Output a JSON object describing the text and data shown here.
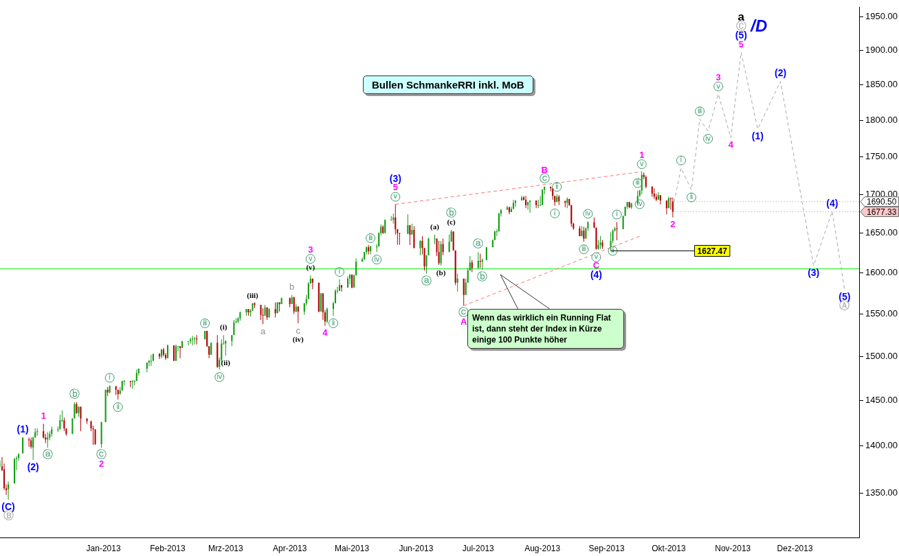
{
  "chart_data": {
    "type": "candlestick",
    "title": "Bullen SchmankeRRI inkl. MoB",
    "log": "y",
    "legend": false,
    "xlim": [
      "2012-11-12",
      "2014-01-01"
    ],
    "xticks": [
      {
        "value": "2013-01-01",
        "label": "Jan-2013"
      },
      {
        "value": "2013-02-01",
        "label": "Feb-2013"
      },
      {
        "value": "2013-03-01",
        "label": "Mrz-2013"
      },
      {
        "value": "2013-04-01",
        "label": "Apr-2013"
      },
      {
        "value": "2013-05-01",
        "label": "Mai-2013"
      },
      {
        "value": "2013-06-01",
        "label": "Jun-2013"
      },
      {
        "value": "2013-07-01",
        "label": "Jul-2013"
      },
      {
        "value": "2013-08-01",
        "label": "Aug-2013"
      },
      {
        "value": "2013-09-01",
        "label": "Sep-2013"
      },
      {
        "value": "2013-10-01",
        "label": "Okt-2013"
      },
      {
        "value": "2013-11-01",
        "label": "Nov-2013"
      },
      {
        "value": "2013-12-01",
        "label": "Dez-2013"
      }
    ],
    "ylim": [
      1304,
      1964
    ],
    "yticks": [
      {
        "value": 1350,
        "label": "1350.00"
      },
      {
        "value": 1400,
        "label": "1400.00"
      },
      {
        "value": 1450,
        "label": "1450.00"
      },
      {
        "value": 1500,
        "label": "1500.00"
      },
      {
        "value": 1550,
        "label": "1550.00"
      },
      {
        "value": 1600,
        "label": "1600.00"
      },
      {
        "value": 1650,
        "label": "1650.00"
      },
      {
        "value": 1700,
        "label": "1700.00"
      },
      {
        "value": 1750,
        "label": "1750.00"
      },
      {
        "value": 1800,
        "label": "1800.00"
      },
      {
        "value": 1850,
        "label": "1850.00"
      },
      {
        "value": 1900,
        "label": "1900.00"
      },
      {
        "value": 1950,
        "label": "1950.00"
      }
    ],
    "x": [
      "2012-11-12",
      "2012-11-13",
      "2012-11-14",
      "2012-11-15",
      "2012-11-16",
      "2012-11-19",
      "2012-11-20",
      "2012-11-21",
      "2012-11-23",
      "2012-11-26",
      "2012-11-27",
      "2012-11-28",
      "2012-11-29",
      "2012-11-30",
      "2012-12-03",
      "2012-12-04",
      "2012-12-05",
      "2012-12-06",
      "2012-12-07",
      "2012-12-10",
      "2012-12-11",
      "2012-12-12",
      "2012-12-13",
      "2012-12-14",
      "2012-12-17",
      "2012-12-18",
      "2012-12-19",
      "2012-12-20",
      "2012-12-21",
      "2012-12-24",
      "2012-12-26",
      "2012-12-27",
      "2012-12-28",
      "2012-12-31",
      "2013-01-02",
      "2013-01-03",
      "2013-01-04",
      "2013-01-07",
      "2013-01-08",
      "2013-01-09",
      "2013-01-10",
      "2013-01-11",
      "2013-01-14",
      "2013-01-15",
      "2013-01-16",
      "2013-01-17",
      "2013-01-18",
      "2013-01-22",
      "2013-01-23",
      "2013-01-24",
      "2013-01-25",
      "2013-01-28",
      "2013-01-29",
      "2013-01-30",
      "2013-01-31",
      "2013-02-01",
      "2013-02-04",
      "2013-02-05",
      "2013-02-06",
      "2013-02-07",
      "2013-02-08",
      "2013-02-11",
      "2013-02-12",
      "2013-02-13",
      "2013-02-14",
      "2013-02-15",
      "2013-02-19",
      "2013-02-20",
      "2013-02-21",
      "2013-02-22",
      "2013-02-25",
      "2013-02-26",
      "2013-02-27",
      "2013-02-28",
      "2013-03-01",
      "2013-03-04",
      "2013-03-05",
      "2013-03-06",
      "2013-03-07",
      "2013-03-08",
      "2013-03-11",
      "2013-03-12",
      "2013-03-13",
      "2013-03-14",
      "2013-03-15",
      "2013-03-18",
      "2013-03-19",
      "2013-03-20",
      "2013-03-21",
      "2013-03-22",
      "2013-03-25",
      "2013-03-26",
      "2013-03-27",
      "2013-03-28",
      "2013-04-01",
      "2013-04-02",
      "2013-04-03",
      "2013-04-04",
      "2013-04-05",
      "2013-04-08",
      "2013-04-09",
      "2013-04-10",
      "2013-04-11",
      "2013-04-12",
      "2013-04-15",
      "2013-04-16",
      "2013-04-17",
      "2013-04-18",
      "2013-04-19",
      "2013-04-22",
      "2013-04-23",
      "2013-04-24",
      "2013-04-25",
      "2013-04-26",
      "2013-04-29",
      "2013-04-30",
      "2013-05-01",
      "2013-05-02",
      "2013-05-03",
      "2013-05-06",
      "2013-05-07",
      "2013-05-08",
      "2013-05-09",
      "2013-05-10",
      "2013-05-13",
      "2013-05-14",
      "2013-05-15",
      "2013-05-16",
      "2013-05-17",
      "2013-05-20",
      "2013-05-21",
      "2013-05-22",
      "2013-05-23",
      "2013-05-24",
      "2013-05-28",
      "2013-05-29",
      "2013-05-30",
      "2013-05-31",
      "2013-06-03",
      "2013-06-04",
      "2013-06-05",
      "2013-06-06",
      "2013-06-07",
      "2013-06-10",
      "2013-06-11",
      "2013-06-12",
      "2013-06-13",
      "2013-06-14",
      "2013-06-17",
      "2013-06-18",
      "2013-06-19",
      "2013-06-20",
      "2013-06-21",
      "2013-06-24",
      "2013-06-25",
      "2013-06-26",
      "2013-06-27",
      "2013-06-28",
      "2013-07-01",
      "2013-07-02",
      "2013-07-03",
      "2013-07-05",
      "2013-07-08",
      "2013-07-09",
      "2013-07-10",
      "2013-07-11",
      "2013-07-12",
      "2013-07-15",
      "2013-07-16",
      "2013-07-17",
      "2013-07-18",
      "2013-07-19",
      "2013-07-22",
      "2013-07-23",
      "2013-07-24",
      "2013-07-25",
      "2013-07-26",
      "2013-07-29",
      "2013-07-30",
      "2013-07-31",
      "2013-08-01",
      "2013-08-02",
      "2013-08-05",
      "2013-08-06",
      "2013-08-07",
      "2013-08-08",
      "2013-08-09",
      "2013-08-12",
      "2013-08-13",
      "2013-08-14",
      "2013-08-15",
      "2013-08-16",
      "2013-08-19",
      "2013-08-20",
      "2013-08-21",
      "2013-08-22",
      "2013-08-23",
      "2013-08-26",
      "2013-08-27",
      "2013-08-28",
      "2013-08-29",
      "2013-08-30",
      "2013-09-03",
      "2013-09-04",
      "2013-09-05",
      "2013-09-06",
      "2013-09-09",
      "2013-09-10",
      "2013-09-11",
      "2013-09-12",
      "2013-09-13",
      "2013-09-16",
      "2013-09-17",
      "2013-09-18",
      "2013-09-19",
      "2013-09-20",
      "2013-09-23",
      "2013-09-24",
      "2013-09-25",
      "2013-09-26",
      "2013-09-27",
      "2013-09-30",
      "2013-10-01",
      "2013-10-02",
      "2013-10-03"
    ],
    "ohlc": [
      [
        1380,
        1384,
        1377,
        1380
      ],
      [
        1378,
        1388,
        1373,
        1374
      ],
      [
        1375,
        1381,
        1353,
        1355
      ],
      [
        1355,
        1359,
        1348,
        1353
      ],
      [
        1354,
        1362,
        1343,
        1359
      ],
      [
        1360,
        1387,
        1360,
        1386
      ],
      [
        1386,
        1389,
        1374,
        1387
      ],
      [
        1387,
        1392,
        1384,
        1391
      ],
      [
        1392,
        1409,
        1392,
        1409
      ],
      [
        1407,
        1409,
        1399,
        1406
      ],
      [
        1406,
        1409,
        1397,
        1399
      ],
      [
        1398,
        1410,
        1385,
        1409
      ],
      [
        1409,
        1419,
        1409,
        1415
      ],
      [
        1415,
        1419,
        1411,
        1416
      ],
      [
        1416,
        1424,
        1408,
        1409
      ],
      [
        1409,
        1413,
        1403,
        1407
      ],
      [
        1407,
        1415,
        1398,
        1409
      ],
      [
        1409,
        1416,
        1406,
        1413
      ],
      [
        1413,
        1421,
        1410,
        1418
      ],
      [
        1418,
        1421,
        1415,
        1418
      ],
      [
        1418,
        1434,
        1418,
        1428
      ],
      [
        1428,
        1439,
        1426,
        1428
      ],
      [
        1428,
        1431,
        1416,
        1419
      ],
      [
        1419,
        1419,
        1411,
        1413
      ],
      [
        1413,
        1430,
        1413,
        1430
      ],
      [
        1430,
        1448,
        1430,
        1446
      ],
      [
        1446,
        1448,
        1435,
        1436
      ],
      [
        1436,
        1443,
        1432,
        1443
      ],
      [
        1443,
        1443,
        1416,
        1430
      ],
      [
        1430,
        1430,
        1424,
        1427
      ],
      [
        1427,
        1427,
        1416,
        1419
      ],
      [
        1419,
        1422,
        1401,
        1418
      ],
      [
        1418,
        1418,
        1401,
        1402
      ],
      [
        1402,
        1426,
        1398,
        1426
      ],
      [
        1426,
        1462,
        1426,
        1462
      ],
      [
        1462,
        1465,
        1455,
        1459
      ],
      [
        1459,
        1467,
        1458,
        1466
      ],
      [
        1466,
        1466,
        1456,
        1462
      ],
      [
        1462,
        1462,
        1451,
        1457
      ],
      [
        1457,
        1465,
        1457,
        1461
      ],
      [
        1461,
        1472,
        1461,
        1472
      ],
      [
        1472,
        1473,
        1467,
        1472
      ],
      [
        1472,
        1472,
        1465,
        1471
      ],
      [
        1471,
        1473,
        1463,
        1472
      ],
      [
        1472,
        1473,
        1467,
        1472
      ],
      [
        1472,
        1485,
        1472,
        1481
      ],
      [
        1481,
        1486,
        1478,
        1486
      ],
      [
        1486,
        1493,
        1482,
        1493
      ],
      [
        1493,
        1496,
        1489,
        1495
      ],
      [
        1495,
        1502,
        1489,
        1495
      ],
      [
        1495,
        1503,
        1495,
        1503
      ],
      [
        1503,
        1504,
        1497,
        1500
      ],
      [
        1500,
        1509,
        1498,
        1508
      ],
      [
        1508,
        1510,
        1500,
        1502
      ],
      [
        1502,
        1504,
        1496,
        1498
      ],
      [
        1498,
        1514,
        1498,
        1513
      ],
      [
        1513,
        1513,
        1495,
        1495
      ],
      [
        1495,
        1514,
        1495,
        1512
      ],
      [
        1512,
        1512,
        1506,
        1512
      ],
      [
        1512,
        1512,
        1498,
        1510
      ],
      [
        1510,
        1518,
        1510,
        1518
      ],
      [
        1518,
        1518,
        1513,
        1518
      ],
      [
        1518,
        1522,
        1515,
        1520
      ],
      [
        1520,
        1524,
        1513,
        1521
      ],
      [
        1521,
        1523,
        1514,
        1521
      ],
      [
        1521,
        1525,
        1514,
        1520
      ],
      [
        1520,
        1530,
        1520,
        1530
      ],
      [
        1530,
        1530,
        1511,
        1512
      ],
      [
        1512,
        1512,
        1498,
        1502
      ],
      [
        1502,
        1516,
        1502,
        1516
      ],
      [
        1516,
        1525,
        1487,
        1488
      ],
      [
        1488,
        1499,
        1485,
        1496
      ],
      [
        1496,
        1520,
        1494,
        1515
      ],
      [
        1515,
        1525,
        1514,
        1515
      ],
      [
        1515,
        1519,
        1501,
        1518
      ],
      [
        1518,
        1525,
        1512,
        1525
      ],
      [
        1525,
        1543,
        1525,
        1540
      ],
      [
        1540,
        1545,
        1539,
        1541
      ],
      [
        1541,
        1546,
        1539,
        1545
      ],
      [
        1545,
        1553,
        1542,
        1552
      ],
      [
        1552,
        1556,
        1548,
        1556
      ],
      [
        1556,
        1556,
        1548,
        1552
      ],
      [
        1552,
        1556,
        1547,
        1554
      ],
      [
        1554,
        1563,
        1554,
        1563
      ],
      [
        1563,
        1564,
        1557,
        1561
      ],
      [
        1561,
        1561,
        1543,
        1549
      ],
      [
        1549,
        1557,
        1538,
        1548
      ],
      [
        1548,
        1561,
        1548,
        1558
      ],
      [
        1558,
        1558,
        1543,
        1546
      ],
      [
        1546,
        1557,
        1546,
        1556
      ],
      [
        1556,
        1564,
        1546,
        1551
      ],
      [
        1551,
        1564,
        1551,
        1564
      ],
      [
        1564,
        1564,
        1553,
        1562
      ],
      [
        1562,
        1570,
        1562,
        1569
      ],
      [
        1569,
        1570,
        1558,
        1562
      ],
      [
        1562,
        1573,
        1562,
        1570
      ],
      [
        1570,
        1571,
        1550,
        1553
      ],
      [
        1553,
        1562,
        1552,
        1559
      ],
      [
        1559,
        1559,
        1539,
        1553
      ],
      [
        1553,
        1563,
        1549,
        1563
      ],
      [
        1563,
        1573,
        1560,
        1568
      ],
      [
        1568,
        1589,
        1568,
        1587
      ],
      [
        1587,
        1597,
        1587,
        1593
      ],
      [
        1593,
        1593,
        1580,
        1588
      ],
      [
        1588,
        1588,
        1552,
        1553
      ],
      [
        1553,
        1575,
        1553,
        1575
      ],
      [
        1575,
        1575,
        1543,
        1552
      ],
      [
        1552,
        1555,
        1536,
        1541
      ],
      [
        1541,
        1558,
        1539,
        1556
      ],
      [
        1556,
        1565,
        1548,
        1563
      ],
      [
        1563,
        1580,
        1563,
        1578
      ],
      [
        1578,
        1583,
        1575,
        1578
      ],
      [
        1578,
        1592,
        1578,
        1585
      ],
      [
        1585,
        1585,
        1577,
        1582
      ],
      [
        1582,
        1596,
        1582,
        1593
      ],
      [
        1593,
        1598,
        1586,
        1598
      ],
      [
        1598,
        1598,
        1581,
        1582
      ],
      [
        1582,
        1598,
        1582,
        1597
      ],
      [
        1597,
        1618,
        1597,
        1614
      ],
      [
        1614,
        1619,
        1614,
        1617
      ],
      [
        1617,
        1626,
        1616,
        1626
      ],
      [
        1626,
        1633,
        1623,
        1632
      ],
      [
        1632,
        1635,
        1623,
        1627
      ],
      [
        1627,
        1634,
        1623,
        1633
      ],
      [
        1633,
        1636,
        1626,
        1633
      ],
      [
        1633,
        1651,
        1633,
        1650
      ],
      [
        1650,
        1661,
        1647,
        1658
      ],
      [
        1658,
        1660,
        1649,
        1650
      ],
      [
        1650,
        1667,
        1650,
        1667
      ],
      [
        1667,
        1672,
        1666,
        1667
      ],
      [
        1667,
        1675,
        1662,
        1670
      ],
      [
        1670,
        1687,
        1648,
        1655
      ],
      [
        1655,
        1655,
        1635,
        1650
      ],
      [
        1650,
        1650,
        1635,
        1649
      ],
      [
        1649,
        1674,
        1649,
        1660
      ],
      [
        1660,
        1660,
        1635,
        1648
      ],
      [
        1648,
        1662,
        1648,
        1654
      ],
      [
        1654,
        1659,
        1631,
        1631
      ],
      [
        1631,
        1641,
        1622,
        1640
      ],
      [
        1640,
        1646,
        1623,
        1631
      ],
      [
        1631,
        1631,
        1603,
        1608
      ],
      [
        1608,
        1622,
        1599,
        1622
      ],
      [
        1622,
        1644,
        1622,
        1643
      ],
      [
        1643,
        1648,
        1636,
        1643
      ],
      [
        1643,
        1643,
        1621,
        1626
      ],
      [
        1626,
        1640,
        1610,
        1612
      ],
      [
        1612,
        1640,
        1609,
        1636
      ],
      [
        1636,
        1643,
        1622,
        1626
      ],
      [
        1626,
        1648,
        1626,
        1639
      ],
      [
        1639,
        1654,
        1639,
        1652
      ],
      [
        1652,
        1652,
        1628,
        1628
      ],
      [
        1628,
        1628,
        1585,
        1588
      ],
      [
        1588,
        1599,
        1577,
        1593
      ],
      [
        1593,
        1593,
        1560,
        1573
      ],
      [
        1573,
        1593,
        1573,
        1588
      ],
      [
        1588,
        1606,
        1588,
        1603
      ],
      [
        1603,
        1621,
        1603,
        1613
      ],
      [
        1613,
        1616,
        1601,
        1606
      ],
      [
        1606,
        1626,
        1606,
        1615
      ],
      [
        1615,
        1624,
        1606,
        1614
      ],
      [
        1614,
        1618,
        1604,
        1616
      ],
      [
        1616,
        1632,
        1616,
        1632
      ],
      [
        1632,
        1642,
        1632,
        1641
      ],
      [
        1641,
        1653,
        1641,
        1652
      ],
      [
        1652,
        1655,
        1646,
        1652
      ],
      [
        1652,
        1676,
        1652,
        1675
      ],
      [
        1675,
        1680,
        1671,
        1680
      ],
      [
        1680,
        1685,
        1680,
        1683
      ],
      [
        1683,
        1684,
        1674,
        1677
      ],
      [
        1677,
        1684,
        1677,
        1681
      ],
      [
        1681,
        1693,
        1681,
        1689
      ],
      [
        1689,
        1692,
        1684,
        1692
      ],
      [
        1692,
        1698,
        1692,
        1696
      ],
      [
        1696,
        1698,
        1692,
        1693
      ],
      [
        1693,
        1698,
        1682,
        1686
      ],
      [
        1686,
        1690,
        1680,
        1690
      ],
      [
        1690,
        1692,
        1676,
        1692
      ],
      [
        1692,
        1692,
        1682,
        1686
      ],
      [
        1686,
        1693,
        1682,
        1686
      ],
      [
        1686,
        1698,
        1685,
        1686
      ],
      [
        1686,
        1707,
        1686,
        1706
      ],
      [
        1706,
        1710,
        1700,
        1710
      ],
      [
        1710,
        1710,
        1704,
        1708
      ],
      [
        1708,
        1708,
        1693,
        1698
      ],
      [
        1698,
        1698,
        1685,
        1690
      ],
      [
        1690,
        1700,
        1690,
        1697
      ],
      [
        1697,
        1699,
        1686,
        1691
      ],
      [
        1691,
        1692,
        1683,
        1689
      ],
      [
        1689,
        1696,
        1682,
        1694
      ],
      [
        1694,
        1694,
        1685,
        1686
      ],
      [
        1686,
        1686,
        1658,
        1662
      ],
      [
        1662,
        1663,
        1654,
        1656
      ],
      [
        1656,
        1659,
        1646,
        1646
      ],
      [
        1646,
        1659,
        1646,
        1653
      ],
      [
        1653,
        1658,
        1639,
        1643
      ],
      [
        1643,
        1657,
        1643,
        1656
      ],
      [
        1656,
        1665,
        1653,
        1664
      ],
      [
        1664,
        1670,
        1656,
        1657
      ],
      [
        1657,
        1657,
        1629,
        1630
      ],
      [
        1630,
        1641,
        1629,
        1635
      ],
      [
        1635,
        1646,
        1630,
        1638
      ],
      [
        1638,
        1641,
        1630,
        1633
      ],
      [
        1633,
        1651,
        1627.47,
        1640
      ],
      [
        1640,
        1655,
        1637,
        1653
      ],
      [
        1653,
        1658,
        1652,
        1656
      ],
      [
        1656,
        1664,
        1641,
        1655
      ],
      [
        1655,
        1672,
        1655,
        1672
      ],
      [
        1672,
        1684,
        1672,
        1684
      ],
      [
        1684,
        1690,
        1681,
        1690
      ],
      [
        1690,
        1690,
        1682,
        1683
      ],
      [
        1683,
        1689,
        1681,
        1688
      ],
      [
        1688,
        1705,
        1687,
        1698
      ],
      [
        1698,
        1706,
        1697,
        1705
      ],
      [
        1705,
        1730,
        1700,
        1726
      ],
      [
        1726,
        1729,
        1720,
        1723
      ],
      [
        1723,
        1725,
        1708,
        1710
      ],
      [
        1710,
        1711,
        1697,
        1701
      ],
      [
        1701,
        1708,
        1694,
        1697
      ],
      [
        1697,
        1701,
        1691,
        1693
      ],
      [
        1693,
        1703,
        1693,
        1699
      ],
      [
        1699,
        1699,
        1687,
        1692
      ],
      [
        1692,
        1692,
        1674,
        1682
      ],
      [
        1682,
        1697,
        1682,
        1695
      ],
      [
        1695,
        1696,
        1680,
        1694
      ],
      [
        1690.5,
        1696,
        1670,
        1677.33
      ]
    ],
    "series": [
      {
        "type": "line",
        "color": "#ff7070",
        "line_style": "dashed",
        "marker": "none",
        "x": [
          "2013-05-22",
          "2013-09-18"
        ],
        "values": [
          1687,
          1730
        ]
      },
      {
        "type": "line",
        "color": "#ff7070",
        "line_style": "dashed",
        "marker": "none",
        "x": [
          "2013-06-24",
          "2013-09-17"
        ],
        "values": [
          1560,
          1646
        ]
      },
      {
        "type": "line",
        "color": "#a8a8a8",
        "line_style": "dashed",
        "marker": "none",
        "x": [
          "2013-10-03",
          "2013-10-07",
          "2013-10-12",
          "2013-10-16",
          "2013-10-20",
          "2013-10-25",
          "2013-10-31",
          "2013-11-05",
          "2013-11-13",
          "2013-11-24",
          "2013-12-10",
          "2013-12-19",
          "2013-12-25"
        ],
        "values": [
          1682,
          1735,
          1706,
          1802,
          1785,
          1837,
          1776,
          1897,
          1788,
          1855,
          1609,
          1678,
          1579
        ]
      }
    ],
    "ref_lines": [
      {
        "axis": "y",
        "value": 1605,
        "color": "#00ee00",
        "line_style": "solid"
      }
    ],
    "annotations": [
      "Wenn das wirklich ein Running Flat ist, dann steht der Index in Kürze einige 100 Punkte höher",
      {
        "text": "(C)",
        "x": "2012-11-16",
        "y": 1343
      },
      {
        "text": "Ⓑ",
        "x": "2012-11-16",
        "y": 1343
      },
      {
        "text": "(1)",
        "x": "2012-11-23",
        "y": 1409
      },
      {
        "text": "(2)",
        "x": "2012-11-28",
        "y": 1385
      },
      {
        "text": "1",
        "x": "2012-12-03",
        "y": 1424
      },
      {
        "text": "ⓐ",
        "x": "2012-12-05",
        "y": 1398
      },
      {
        "text": "ⓑ",
        "x": "2012-12-18",
        "y": 1448
      },
      {
        "text": "ⓒ",
        "x": "2012-12-31",
        "y": 1398
      },
      {
        "text": "2",
        "x": "2012-12-31",
        "y": 1398
      },
      {
        "text": "ⅰ",
        "x": "2013-01-04",
        "y": 1467
      },
      {
        "text": "ⅱ",
        "x": "2013-01-08",
        "y": 1451
      },
      {
        "text": "ⅲ",
        "x": "2013-02-19",
        "y": 1530
      },
      {
        "text": "ⅳ",
        "x": "2013-02-26",
        "y": 1485
      },
      {
        "text": "(i)",
        "x": "2013-02-28",
        "y": 1525
      },
      {
        "text": "(ii)",
        "x": "2013-03-01",
        "y": 1501
      },
      {
        "text": "(iii)",
        "x": "2013-03-14",
        "y": 1563
      },
      {
        "text": "a",
        "x": "2013-03-19",
        "y": 1538
      },
      {
        "text": "b",
        "x": "2013-04-02",
        "y": 1573
      },
      {
        "text": "c",
        "x": "2013-04-05",
        "y": 1539
      },
      {
        "text": "(iv)",
        "x": "2013-04-05",
        "y": 1539
      },
      {
        "text": "(v)",
        "x": "2013-04-11",
        "y": 1597
      },
      {
        "text": "ⅴ",
        "x": "2013-04-11",
        "y": 1597
      },
      {
        "text": "3",
        "x": "2013-04-11",
        "y": 1597
      },
      {
        "text": "4",
        "x": "2013-04-18",
        "y": 1536
      },
      {
        "text": "ⅰ",
        "x": "2013-04-25",
        "y": 1592
      },
      {
        "text": "ⅱ",
        "x": "2013-04-22",
        "y": 1548
      },
      {
        "text": "ⅲ",
        "x": "2013-05-10",
        "y": 1634
      },
      {
        "text": "ⅳ",
        "x": "2013-05-13",
        "y": 1626
      },
      {
        "text": "ⅴ",
        "x": "2013-05-22",
        "y": 1687
      },
      {
        "text": "5",
        "x": "2013-05-22",
        "y": 1687
      },
      {
        "text": "(3)",
        "x": "2013-05-22",
        "y": 1687
      },
      {
        "text": "ⓐ",
        "x": "2013-06-06",
        "y": 1599
      },
      {
        "text": "(a)",
        "x": "2013-06-10",
        "y": 1648
      },
      {
        "text": "(b)",
        "x": "2013-06-13",
        "y": 1609
      },
      {
        "text": "(c)",
        "x": "2013-06-18",
        "y": 1654
      },
      {
        "text": "ⓑ",
        "x": "2013-06-18",
        "y": 1654
      },
      {
        "text": "ⓒ",
        "x": "2013-06-24",
        "y": 1560
      },
      {
        "text": "A",
        "x": "2013-06-24",
        "y": 1560
      },
      {
        "text": "ⓐ",
        "x": "2013-07-01",
        "y": 1626
      },
      {
        "text": "ⓑ",
        "x": "2013-07-03",
        "y": 1604
      },
      {
        "text": "ⓒ",
        "x": "2013-08-02",
        "y": 1710
      },
      {
        "text": "B",
        "x": "2013-08-02",
        "y": 1710
      },
      {
        "text": "ⅱ",
        "x": "2013-08-08",
        "y": 1700
      },
      {
        "text": "ⅰ",
        "x": "2013-08-07",
        "y": 1685
      },
      {
        "text": "ⅳ",
        "x": "2013-08-23",
        "y": 1665
      },
      {
        "text": "ⅲ",
        "x": "2013-08-21",
        "y": 1639
      },
      {
        "text": "ⅴ",
        "x": "2013-08-27",
        "y": 1629
      },
      {
        "text": "C",
        "x": "2013-08-27",
        "y": 1629
      },
      {
        "text": "(4)",
        "x": "2013-08-27",
        "y": 1629
      },
      {
        "text": "ⅰ",
        "x": "2013-09-06",
        "y": 1664
      },
      {
        "text": "ⅱ",
        "x": "2013-09-04",
        "y": 1637
      },
      {
        "text": "ⅲ",
        "x": "2013-09-16",
        "y": 1705
      },
      {
        "text": "ⅳ",
        "x": "2013-09-17",
        "y": 1697
      },
      {
        "text": "ⅴ",
        "x": "2013-09-18",
        "y": 1730
      },
      {
        "text": "1",
        "x": "2013-09-18",
        "y": 1730
      },
      {
        "text": "2",
        "x": "2013-10-03",
        "y": 1670
      },
      {
        "text": "1627.47",
        "x": "2013-09-03",
        "y": 1627.47
      },
      {
        "text": "1690.50",
        "x": "2013-10-03",
        "y": 1690.5
      },
      {
        "text": "1677.33",
        "x": "2013-10-03",
        "y": 1677.33
      },
      {
        "text": "ⅰ",
        "x": "2013-10-07",
        "y": 1735
      },
      {
        "text": "ⅱ",
        "x": "2013-10-12",
        "y": 1706
      },
      {
        "text": "ⅲ",
        "x": "2013-10-16",
        "y": 1802
      },
      {
        "text": "ⅳ",
        "x": "2013-10-20",
        "y": 1785
      },
      {
        "text": "ⅴ",
        "x": "2013-10-25",
        "y": 1837
      },
      {
        "text": "3",
        "x": "2013-10-25",
        "y": 1837
      },
      {
        "text": "4",
        "x": "2013-10-31",
        "y": 1776
      },
      {
        "text": "5",
        "x": "2013-11-05",
        "y": 1897
      },
      {
        "text": "(5)",
        "x": "2013-11-05",
        "y": 1897
      },
      {
        "text": "Ⓒ",
        "x": "2013-11-05",
        "y": 1897
      },
      {
        "text": "/D",
        "x": "2013-11-05",
        "y": 1897
      },
      "a",
      {
        "text": "(1)",
        "x": "2013-11-13",
        "y": 1788
      },
      {
        "text": "(2)",
        "x": "2013-11-24",
        "y": 1855
      },
      {
        "text": "(3)",
        "x": "2013-12-10",
        "y": 1609
      },
      {
        "text": "(4)",
        "x": "2013-12-19",
        "y": 1678
      },
      {
        "text": "(5)",
        "x": "2013-12-25",
        "y": 1579
      },
      {
        "text": "Ⓐ",
        "x": "2013-12-25",
        "y": 1579
      }
    ]
  }
}
